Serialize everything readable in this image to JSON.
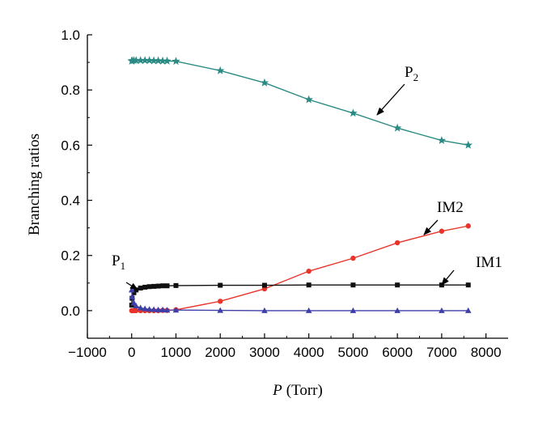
{
  "chart_data": {
    "type": "line",
    "xlabel_var": "P",
    "xlabel_unit": "(Torr)",
    "ylabel": "Branching ratios",
    "xlim": [
      -1000,
      8500
    ],
    "ylim": [
      -0.1,
      1.0
    ],
    "xticks": [
      "−1000",
      "0",
      "1000",
      "2000",
      "3000",
      "4000",
      "5000",
      "6000",
      "7000",
      "8000"
    ],
    "xtick_values": [
      -1000,
      0,
      1000,
      2000,
      3000,
      4000,
      5000,
      6000,
      7000,
      8000
    ],
    "yticks": [
      "0.0",
      "0.2",
      "0.4",
      "0.6",
      "0.8",
      "1.0"
    ],
    "ytick_values": [
      0.0,
      0.2,
      0.4,
      0.6,
      0.8,
      1.0
    ],
    "grid": false,
    "series": [
      {
        "color": "#2a8a84",
        "marker": "star",
        "x": [
          1,
          10,
          50,
          100,
          200,
          300,
          400,
          500,
          600,
          700,
          800,
          1000,
          2000,
          3000,
          4000,
          5000,
          6000,
          7000,
          7600
        ],
        "y": [
          0.905,
          0.906,
          0.907,
          0.907,
          0.907,
          0.907,
          0.907,
          0.906,
          0.906,
          0.905,
          0.905,
          0.904,
          0.87,
          0.826,
          0.765,
          0.716,
          0.662,
          0.617,
          0.6
        ]
      },
      {
        "color": "#e8342a",
        "marker": "circle",
        "x": [
          1,
          10,
          50,
          100,
          200,
          300,
          400,
          500,
          600,
          700,
          800,
          1000,
          2000,
          3000,
          4000,
          5000,
          6000,
          7000,
          7600
        ],
        "y": [
          0.0,
          0.0,
          0.0,
          0.0,
          0.0,
          0.0,
          0.0,
          0.0,
          0.0,
          0.001,
          0.001,
          0.003,
          0.034,
          0.079,
          0.143,
          0.19,
          0.246,
          0.288,
          0.307
        ]
      },
      {
        "color": "#111111",
        "marker": "square",
        "x": [
          1,
          10,
          50,
          100,
          200,
          300,
          400,
          500,
          600,
          700,
          800,
          1000,
          2000,
          3000,
          4000,
          5000,
          6000,
          7000,
          7600
        ],
        "y": [
          0.02,
          0.045,
          0.065,
          0.075,
          0.082,
          0.085,
          0.087,
          0.088,
          0.089,
          0.09,
          0.09,
          0.091,
          0.092,
          0.092,
          0.093,
          0.093,
          0.093,
          0.093,
          0.093
        ]
      },
      {
        "color": "#3f3fa8",
        "marker": "triangle",
        "x": [
          1,
          10,
          50,
          100,
          200,
          300,
          400,
          500,
          600,
          700,
          800,
          1000,
          2000,
          3000,
          4000,
          5000,
          6000,
          7000,
          7600
        ],
        "y": [
          0.075,
          0.05,
          0.028,
          0.017,
          0.01,
          0.007,
          0.005,
          0.004,
          0.003,
          0.003,
          0.002,
          0.002,
          0.001,
          0.0,
          0.0,
          0.0,
          0.0,
          0.0,
          0.0
        ]
      }
    ],
    "annotations": [
      {
        "label": "P",
        "sub": "2"
      },
      {
        "label": "IM2",
        "sub": ""
      },
      {
        "label": "IM1",
        "sub": ""
      },
      {
        "label": "P",
        "sub": "1"
      }
    ]
  }
}
